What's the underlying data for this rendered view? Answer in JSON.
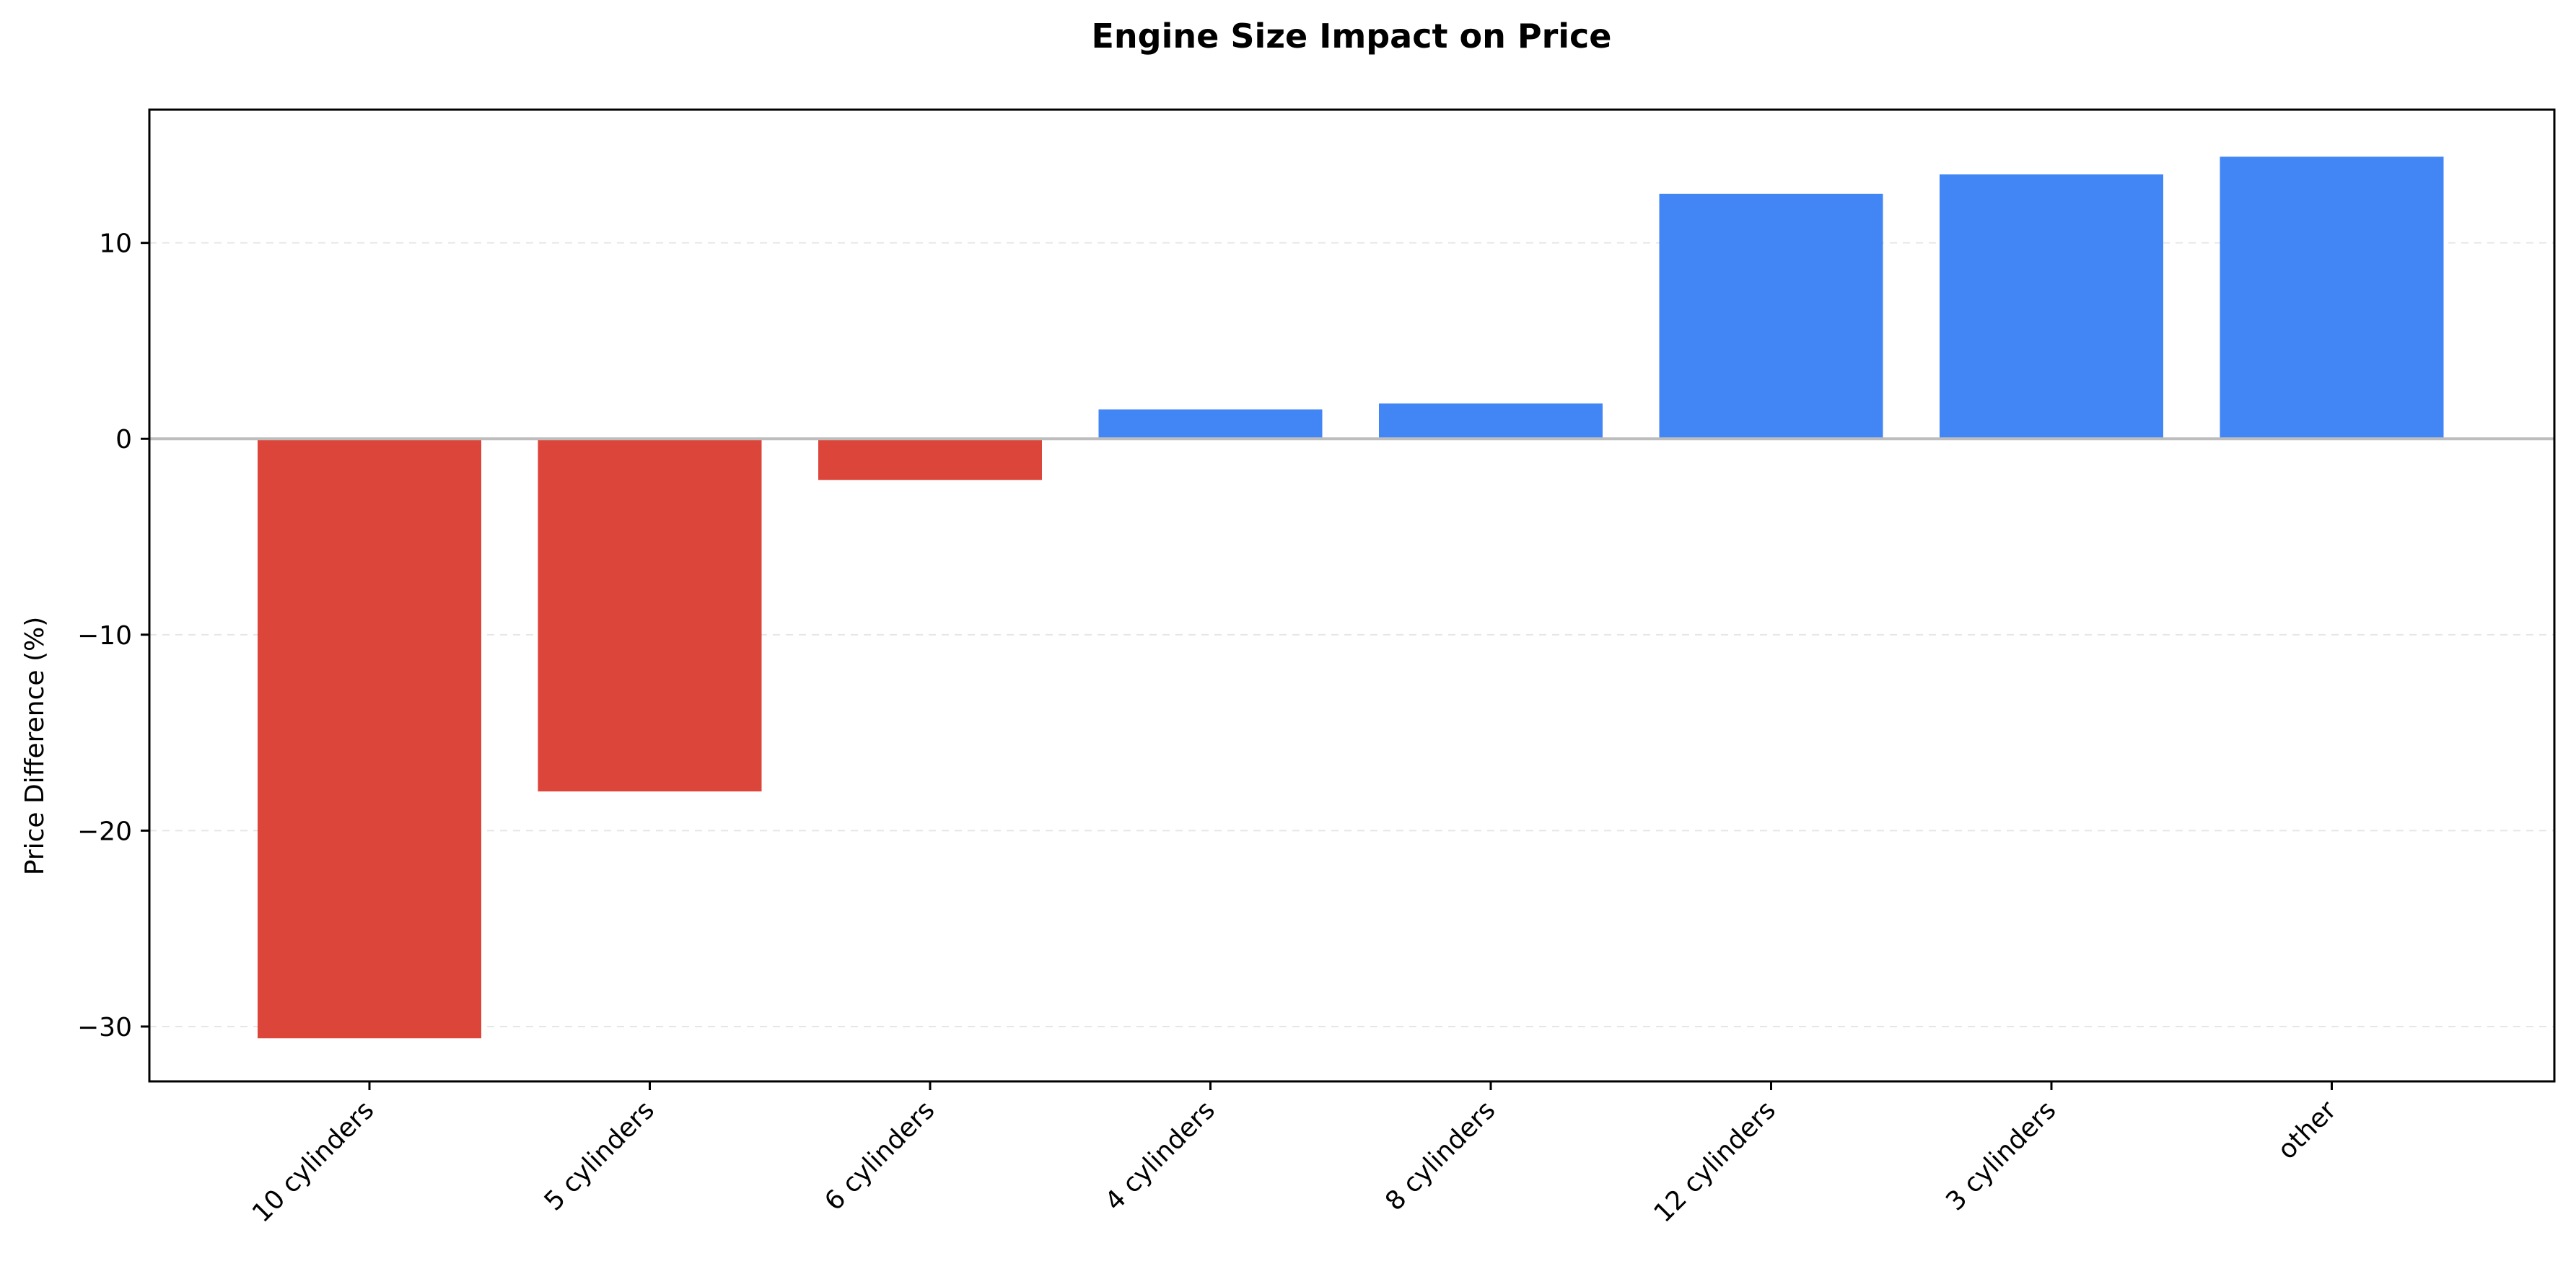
{
  "chart_data": {
    "type": "bar",
    "title": "Engine Size Impact on Price",
    "xlabel": "",
    "ylabel": "Price Difference (%)",
    "categories": [
      "10 cylinders",
      "5 cylinders",
      "6 cylinders",
      "4 cylinders",
      "8 cylinders",
      "12 cylinders",
      "3 cylinders",
      "other"
    ],
    "values": [
      -30.6,
      -18.0,
      -2.1,
      1.5,
      1.8,
      12.5,
      13.5,
      14.4
    ],
    "ylim": [
      -32.8,
      16.8
    ],
    "yticks": [
      10,
      0,
      -10,
      -20,
      -30
    ],
    "ytick_labels": [
      "10",
      "0",
      "−10",
      "−20",
      "−30"
    ],
    "grid": true,
    "colors": {
      "negative": "#dc4539",
      "positive": "#4285f4",
      "zero_line": "#bdbdbd",
      "grid": "#e6e6e6"
    }
  }
}
